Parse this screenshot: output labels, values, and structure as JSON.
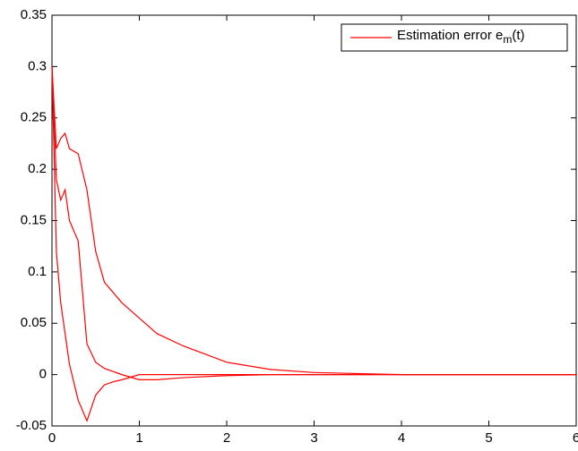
{
  "chart_data": {
    "type": "line",
    "x": [
      0,
      0.05,
      0.1,
      0.15,
      0.2,
      0.3,
      0.4,
      0.5,
      0.6,
      0.7,
      0.8,
      1,
      1.2,
      1.5,
      2,
      2.5,
      3,
      3.5,
      4,
      5,
      6
    ],
    "series": [
      {
        "name": "Estimation error e_m(t)",
        "color": "#ff0000",
        "values": [
          0.3,
          0.22,
          0.23,
          0.235,
          0.22,
          0.215,
          0.18,
          0.12,
          0.09,
          0.08,
          0.07,
          0.055,
          0.04,
          0.028,
          0.012,
          0.005,
          0.002,
          0.001,
          0,
          0,
          0
        ]
      },
      {
        "color": "#ff0000",
        "values": [
          0.3,
          0.19,
          0.17,
          0.18,
          0.15,
          0.13,
          0.03,
          0.012,
          0.006,
          0.003,
          0.0,
          -0.005,
          -0.005,
          -0.003,
          -0.001,
          0,
          0,
          0,
          0,
          0,
          0
        ]
      },
      {
        "color": "#ff0000",
        "values": [
          0.3,
          0.12,
          0.07,
          0.04,
          0.01,
          -0.025,
          -0.045,
          -0.02,
          -0.01,
          -0.007,
          -0.005,
          0,
          0,
          0,
          0,
          0,
          0,
          0,
          0,
          0,
          0
        ]
      }
    ],
    "xlim": [
      0,
      6
    ],
    "xticks": [
      0,
      1,
      2,
      3,
      4,
      5,
      6
    ],
    "ylim": [
      -0.05,
      0.35
    ],
    "yticks": [
      -0.05,
      0,
      0.05,
      0.1,
      0.15,
      0.2,
      0.25,
      0.3,
      0.35
    ],
    "legend": "upper right"
  }
}
